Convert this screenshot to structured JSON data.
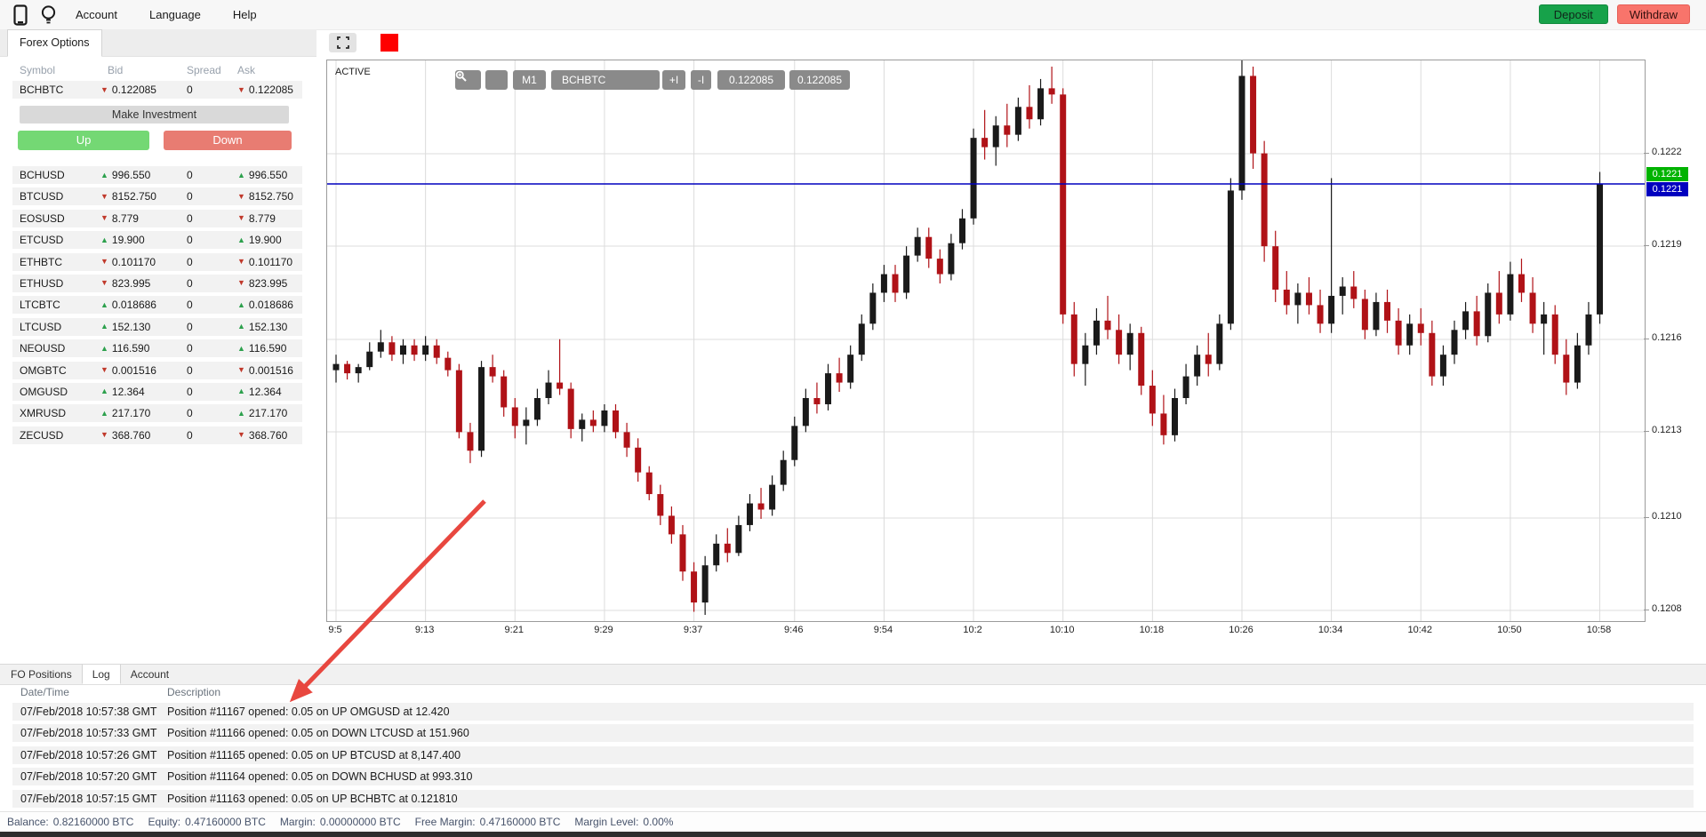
{
  "menubar": {
    "items": [
      "Account",
      "Language",
      "Help"
    ],
    "deposit_label": "Deposit",
    "withdraw_label": "Withdraw"
  },
  "watchlist": {
    "tab_label": "Forex Options",
    "columns": [
      "Symbol",
      "Bid",
      "Spread",
      "Ask"
    ],
    "selected": {
      "symbol": "BCHBTC",
      "dir": "down",
      "bid": "0.122085",
      "spread": "0",
      "ask": "0.122085"
    },
    "make_investment_label": "Make Investment",
    "up_label": "Up",
    "down_label": "Down",
    "rows": [
      {
        "symbol": "BCHUSD",
        "dir": "up",
        "bid": "996.550",
        "spread": "0",
        "ask": "996.550"
      },
      {
        "symbol": "BTCUSD",
        "dir": "down",
        "bid": "8152.750",
        "spread": "0",
        "ask": "8152.750"
      },
      {
        "symbol": "EOSUSD",
        "dir": "down",
        "bid": "8.779",
        "spread": "0",
        "ask": "8.779"
      },
      {
        "symbol": "ETCUSD",
        "dir": "up",
        "bid": "19.900",
        "spread": "0",
        "ask": "19.900"
      },
      {
        "symbol": "ETHBTC",
        "dir": "down",
        "bid": "0.101170",
        "spread": "0",
        "ask": "0.101170"
      },
      {
        "symbol": "ETHUSD",
        "dir": "down",
        "bid": "823.995",
        "spread": "0",
        "ask": "823.995"
      },
      {
        "symbol": "LTCBTC",
        "dir": "up",
        "bid": "0.018686",
        "spread": "0",
        "ask": "0.018686"
      },
      {
        "symbol": "LTCUSD",
        "dir": "up",
        "bid": "152.130",
        "spread": "0",
        "ask": "152.130"
      },
      {
        "symbol": "NEOUSD",
        "dir": "up",
        "bid": "116.590",
        "spread": "0",
        "ask": "116.590"
      },
      {
        "symbol": "OMGBTC",
        "dir": "down",
        "bid": "0.001516",
        "spread": "0",
        "ask": "0.001516"
      },
      {
        "symbol": "OMGUSD",
        "dir": "up",
        "bid": "12.364",
        "spread": "0",
        "ask": "12.364"
      },
      {
        "symbol": "XMRUSD",
        "dir": "up",
        "bid": "217.170",
        "spread": "0",
        "ask": "217.170"
      },
      {
        "symbol": "ZECUSD",
        "dir": "down",
        "bid": "368.760",
        "spread": "0",
        "ask": "368.760"
      }
    ]
  },
  "chart": {
    "active_label": "ACTIVE",
    "toolbar": {
      "timeframe": "M1",
      "symbol": "BCHBTC",
      "zoom_in": "+I",
      "zoom_out": "-I",
      "price1": "0.122085",
      "price2": "0.122085"
    },
    "badges": {
      "green": "0.1221",
      "blue": "0.1221"
    },
    "line_y": 139,
    "price_max_u": 12250,
    "price_min_u": 12069,
    "candle_step": 12.58,
    "y_ticks": [
      [
        "0.1222",
        105
      ],
      [
        "0.1219",
        209
      ],
      [
        "0.1216",
        314
      ],
      [
        "0.1213",
        418
      ],
      [
        "0.1210",
        515
      ],
      [
        "0.1208",
        619
      ]
    ],
    "x_ticks": [
      [
        "9:5",
        0
      ],
      [
        "9:13",
        8
      ],
      [
        "9:21",
        16
      ],
      [
        "9:29",
        24
      ],
      [
        "9:37",
        32
      ],
      [
        "9:46",
        41
      ],
      [
        "9:54",
        49
      ],
      [
        "10:2",
        57
      ],
      [
        "10:10",
        65
      ],
      [
        "10:18",
        73
      ],
      [
        "10:26",
        81
      ],
      [
        "10:34",
        89
      ],
      [
        "10:42",
        97
      ],
      [
        "10:50",
        105
      ],
      [
        "10:58",
        113
      ]
    ],
    "candles": [
      [
        12150,
        12155,
        12146,
        12152
      ],
      [
        12152,
        12153,
        12147,
        12149
      ],
      [
        12149,
        12152,
        12146,
        12151
      ],
      [
        12151,
        12159,
        12150,
        12156
      ],
      [
        12156,
        12163,
        12154,
        12159
      ],
      [
        12159,
        12161,
        12153,
        12155
      ],
      [
        12155,
        12160,
        12152,
        12158
      ],
      [
        12158,
        12160,
        12153,
        12155
      ],
      [
        12155,
        12161,
        12153,
        12158
      ],
      [
        12158,
        12160,
        12152,
        12154
      ],
      [
        12154,
        12156,
        12148,
        12150
      ],
      [
        12150,
        12152,
        12128,
        12130
      ],
      [
        12130,
        12133,
        12120,
        12124
      ],
      [
        12124,
        12153,
        12122,
        12151
      ],
      [
        12151,
        12155,
        12146,
        12148
      ],
      [
        12148,
        12150,
        12135,
        12138
      ],
      [
        12138,
        12141,
        12128,
        12132
      ],
      [
        12132,
        12138,
        12126,
        12134
      ],
      [
        12134,
        12144,
        12132,
        12141
      ],
      [
        12141,
        12150,
        12139,
        12146
      ],
      [
        12146,
        12160,
        12142,
        12144
      ],
      [
        12144,
        12146,
        12128,
        12131
      ],
      [
        12131,
        12136,
        12127,
        12134
      ],
      [
        12134,
        12137,
        12130,
        12132
      ],
      [
        12132,
        12139,
        12130,
        12137
      ],
      [
        12137,
        12139,
        12128,
        12130
      ],
      [
        12130,
        12133,
        12122,
        12125
      ],
      [
        12125,
        12128,
        12114,
        12117
      ],
      [
        12117,
        12119,
        12108,
        12110
      ],
      [
        12110,
        12113,
        12100,
        12103
      ],
      [
        12103,
        12106,
        12094,
        12097
      ],
      [
        12097,
        12100,
        12082,
        12085
      ],
      [
        12085,
        12088,
        12072,
        12075
      ],
      [
        12075,
        12090,
        12071,
        12087
      ],
      [
        12087,
        12097,
        12085,
        12094
      ],
      [
        12094,
        12099,
        12088,
        12091
      ],
      [
        12091,
        12103,
        12090,
        12100
      ],
      [
        12100,
        12110,
        12098,
        12107
      ],
      [
        12107,
        12112,
        12102,
        12105
      ],
      [
        12105,
        12116,
        12103,
        12113
      ],
      [
        12113,
        12124,
        12111,
        12121
      ],
      [
        12121,
        12135,
        12119,
        12132
      ],
      [
        12132,
        12144,
        12130,
        12141
      ],
      [
        12141,
        12146,
        12136,
        12139
      ],
      [
        12139,
        12152,
        12137,
        12149
      ],
      [
        12149,
        12154,
        12143,
        12146
      ],
      [
        12146,
        12158,
        12144,
        12155
      ],
      [
        12155,
        12168,
        12153,
        12165
      ],
      [
        12165,
        12178,
        12163,
        12175
      ],
      [
        12175,
        12184,
        12172,
        12181
      ],
      [
        12181,
        12184,
        12172,
        12175
      ],
      [
        12175,
        12190,
        12173,
        12187
      ],
      [
        12187,
        12196,
        12185,
        12193
      ],
      [
        12193,
        12196,
        12183,
        12186
      ],
      [
        12186,
        12189,
        12178,
        12181
      ],
      [
        12181,
        12194,
        12179,
        12191
      ],
      [
        12191,
        12202,
        12189,
        12199
      ],
      [
        12199,
        12228,
        12197,
        12225
      ],
      [
        12225,
        12234,
        12218,
        12222
      ],
      [
        12222,
        12232,
        12216,
        12229
      ],
      [
        12229,
        12236,
        12222,
        12226
      ],
      [
        12226,
        12238,
        12224,
        12235
      ],
      [
        12235,
        12242,
        12228,
        12231
      ],
      [
        12231,
        12244,
        12229,
        12241
      ],
      [
        12241,
        12248,
        12236,
        12239
      ],
      [
        12239,
        12241,
        12165,
        12168
      ],
      [
        12168,
        12172,
        12148,
        12152
      ],
      [
        12152,
        12162,
        12145,
        12158
      ],
      [
        12158,
        12170,
        12155,
        12166
      ],
      [
        12166,
        12174,
        12160,
        12163
      ],
      [
        12163,
        12168,
        12152,
        12155
      ],
      [
        12155,
        12165,
        12150,
        12162
      ],
      [
        12162,
        12164,
        12142,
        12145
      ],
      [
        12145,
        12150,
        12132,
        12136
      ],
      [
        12136,
        12142,
        12126,
        12129
      ],
      [
        12129,
        12144,
        12127,
        12141
      ],
      [
        12141,
        12152,
        12139,
        12148
      ],
      [
        12148,
        12158,
        12145,
        12155
      ],
      [
        12155,
        12162,
        12148,
        12152
      ],
      [
        12152,
        12168,
        12150,
        12165
      ],
      [
        12165,
        12212,
        12163,
        12208
      ],
      [
        12208,
        12250,
        12205,
        12245
      ],
      [
        12245,
        12248,
        12215,
        12220
      ],
      [
        12220,
        12224,
        12185,
        12190
      ],
      [
        12190,
        12195,
        12172,
        12176
      ],
      [
        12176,
        12182,
        12168,
        12171
      ],
      [
        12171,
        12178,
        12165,
        12175
      ],
      [
        12175,
        12180,
        12168,
        12171
      ],
      [
        12171,
        12176,
        12162,
        12165
      ],
      [
        12165,
        12212,
        12162,
        12174
      ],
      [
        12174,
        12180,
        12168,
        12177
      ],
      [
        12177,
        12182,
        12170,
        12173
      ],
      [
        12173,
        12176,
        12160,
        12163
      ],
      [
        12163,
        12175,
        12161,
        12172
      ],
      [
        12172,
        12176,
        12162,
        12166
      ],
      [
        12166,
        12170,
        12155,
        12158
      ],
      [
        12158,
        12168,
        12155,
        12165
      ],
      [
        12165,
        12170,
        12158,
        12162
      ],
      [
        12162,
        12166,
        12145,
        12148
      ],
      [
        12148,
        12158,
        12145,
        12155
      ],
      [
        12155,
        12166,
        12152,
        12163
      ],
      [
        12163,
        12172,
        12160,
        12169
      ],
      [
        12169,
        12174,
        12158,
        12161
      ],
      [
        12161,
        12178,
        12159,
        12175
      ],
      [
        12175,
        12182,
        12165,
        12168
      ],
      [
        12168,
        12185,
        12166,
        12181
      ],
      [
        12181,
        12186,
        12172,
        12175
      ],
      [
        12175,
        12180,
        12162,
        12165
      ],
      [
        12165,
        12172,
        12155,
        12168
      ],
      [
        12168,
        12171,
        12152,
        12155
      ],
      [
        12155,
        12160,
        12142,
        12146
      ],
      [
        12146,
        12162,
        12144,
        12158
      ],
      [
        12158,
        12172,
        12155,
        12168
      ],
      [
        12168,
        12214,
        12165,
        12210
      ]
    ]
  },
  "colors": {
    "bull": "#1a1a1a",
    "bear": "#b01217",
    "grid": "#dcdcdc",
    "line_blue": "#0000bf",
    "badge_green": "#00b300",
    "badge_blue": "#0000bf",
    "up_arrow": "#2ca04c",
    "down_arrow": "#c0392b",
    "deposit_green": "#17a24a",
    "withdraw_red": "#f8746b",
    "up_button": "#74d874",
    "down_button": "#e87c72",
    "annotation": "#e8473f",
    "red_square": "#fe0000"
  },
  "annotation_arrow": {
    "from": [
      545,
      564
    ],
    "to": [
      330,
      786
    ]
  },
  "bottom": {
    "tabs": [
      "FO Positions",
      "Log",
      "Account"
    ],
    "active_tab": "Log",
    "columns": [
      "Date/Time",
      "Description"
    ],
    "rows": [
      {
        "time": "07/Feb/2018 10:57:38 GMT",
        "desc": "Position #11167 opened: 0.05 on UP OMGUSD at 12.420"
      },
      {
        "time": "07/Feb/2018 10:57:33 GMT",
        "desc": "Position #11166 opened: 0.05 on DOWN LTCUSD at 151.960"
      },
      {
        "time": "07/Feb/2018 10:57:26 GMT",
        "desc": "Position #11165 opened: 0.05 on UP BTCUSD at 8,147.400"
      },
      {
        "time": "07/Feb/2018 10:57:20 GMT",
        "desc": "Position #11164 opened: 0.05 on DOWN BCHUSD at 993.310"
      },
      {
        "time": "07/Feb/2018 10:57:15 GMT",
        "desc": "Position #11163 opened: 0.05 on UP BCHBTC at 0.121810"
      }
    ]
  },
  "status": {
    "items": [
      {
        "label": "Balance:",
        "value": "0.82160000 BTC"
      },
      {
        "label": "Equity:",
        "value": "0.47160000 BTC"
      },
      {
        "label": "Margin:",
        "value": "0.00000000 BTC"
      },
      {
        "label": "Free Margin:",
        "value": "0.47160000 BTC"
      },
      {
        "label": "Margin Level:",
        "value": "0.00%"
      }
    ]
  }
}
